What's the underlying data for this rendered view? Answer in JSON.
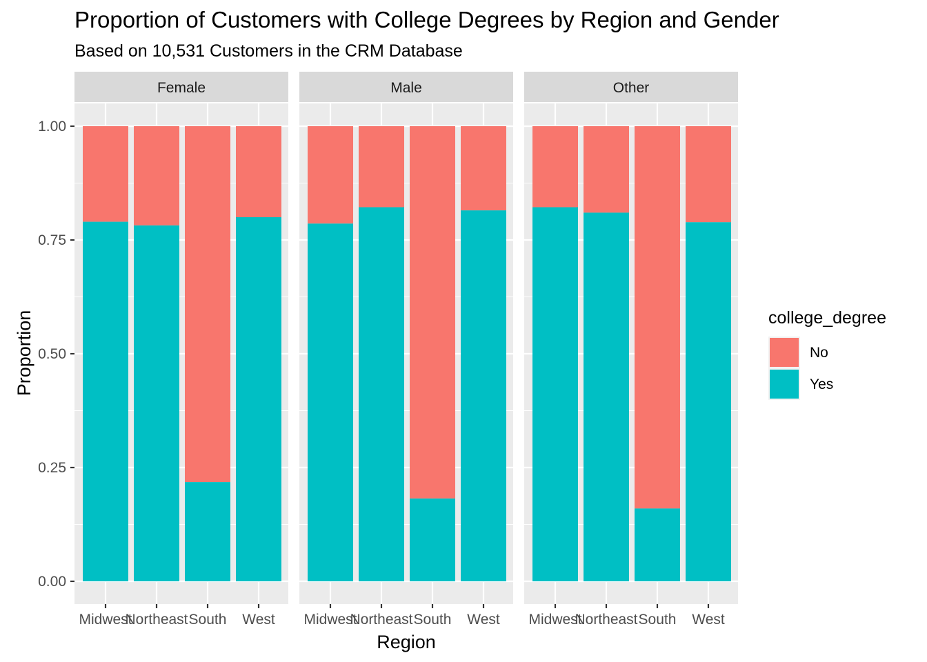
{
  "chart_data": {
    "type": "bar",
    "stacked": true,
    "title": "Proportion of Customers with College Degrees by Region and Gender",
    "subtitle": "Based on 10,531 Customers in the CRM Database",
    "xlabel": "Region",
    "ylabel": "Proportion",
    "ylim": [
      0,
      1
    ],
    "yticks": [
      "0.00",
      "0.25",
      "0.50",
      "0.75",
      "1.00"
    ],
    "ytick_values": [
      0,
      0.25,
      0.5,
      0.75,
      1.0
    ],
    "categories": [
      "Midwest",
      "Northeast",
      "South",
      "West"
    ],
    "legend": {
      "title": "college_degree",
      "position": "right",
      "entries": [
        {
          "name": "No",
          "color": "#F8766D"
        },
        {
          "name": "Yes",
          "color": "#00BFC4"
        }
      ]
    },
    "facets": [
      {
        "label": "Female",
        "yes": [
          0.79,
          0.782,
          0.218,
          0.8
        ]
      },
      {
        "label": "Male",
        "yes": [
          0.786,
          0.822,
          0.182,
          0.815
        ]
      },
      {
        "label": "Other",
        "yes": [
          0.822,
          0.81,
          0.16,
          0.789
        ]
      }
    ],
    "grid": true
  }
}
